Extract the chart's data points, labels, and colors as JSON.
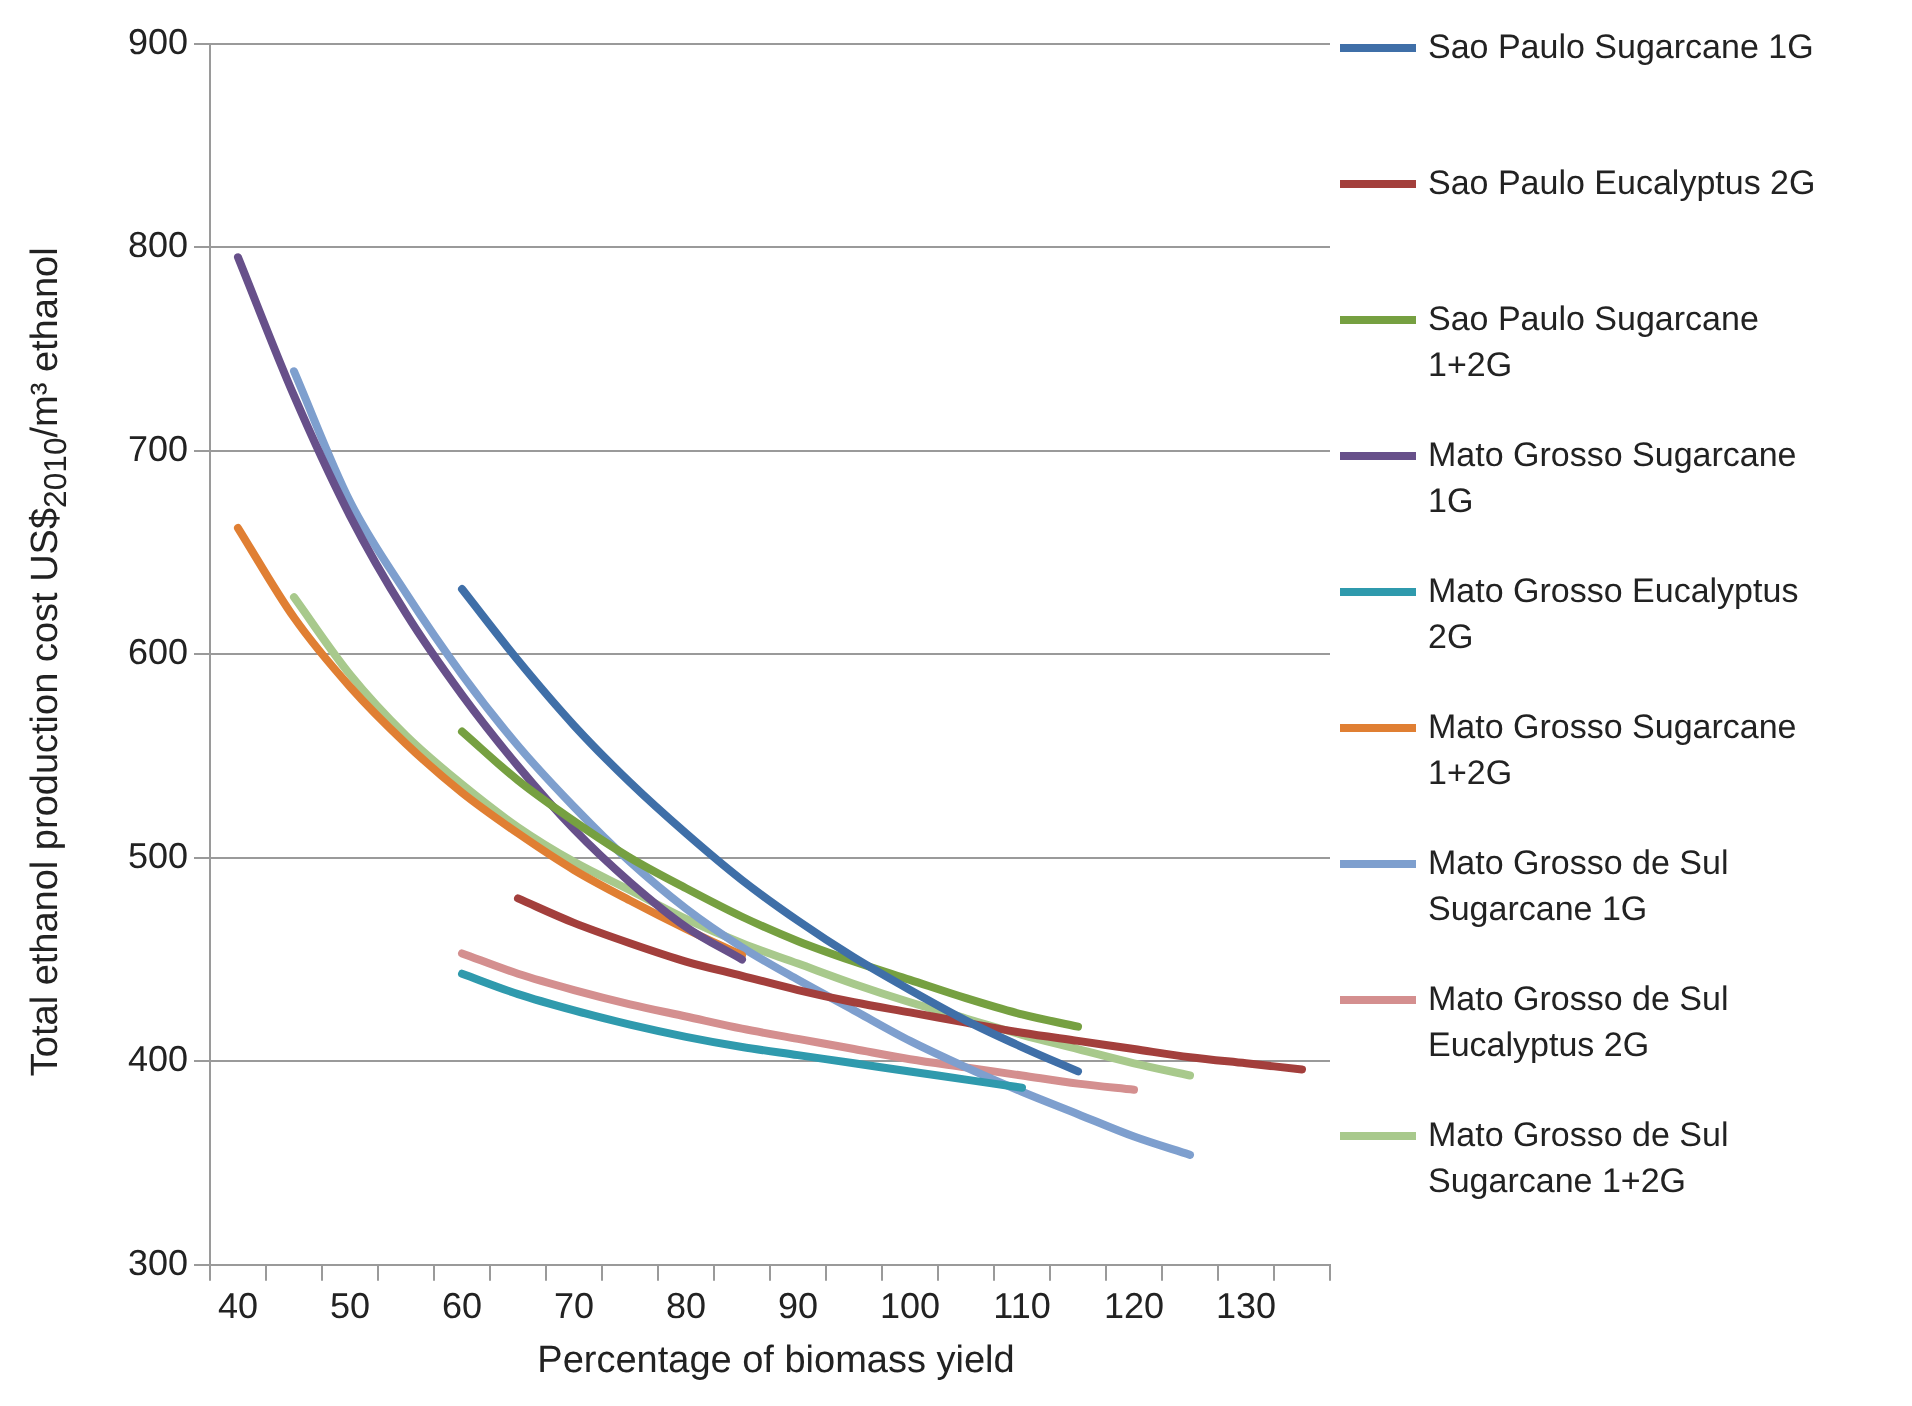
{
  "chart_data": {
    "type": "line",
    "xlabel": "Percentage of biomass yield",
    "ylabel": "Total ethanol production cost US$$_{2010}$/m³ ethanol",
    "categories": [
      "40",
      null,
      "50",
      null,
      "60",
      null,
      "70",
      null,
      "80",
      null,
      "90",
      null,
      "100",
      null,
      "110",
      null,
      "120",
      null,
      "130",
      null
    ],
    "ylim": [
      300,
      900
    ],
    "yticks": [
      300,
      400,
      500,
      600,
      700,
      800,
      900
    ],
    "grid": "y",
    "legend": "right",
    "marker": "none",
    "line_style": "solid",
    "series": [
      {
        "name": "Sao Paulo Sugarcane 1G",
        "color": "#3f6fa8",
        "values": [
          null,
          null,
          null,
          null,
          632,
          597,
          565,
          537,
          512,
          489,
          469,
          451,
          435,
          420,
          407,
          395,
          null,
          null,
          null,
          null
        ]
      },
      {
        "name": "Sao Paulo Eucalyptus 2G",
        "color": "#a33f3c",
        "values": [
          null,
          null,
          null,
          null,
          null,
          480,
          468,
          458,
          449,
          442,
          435,
          429,
          424,
          419,
          414,
          410,
          406,
          402,
          399,
          396
        ]
      },
      {
        "name": "Sao Paulo Sugarcane 1+2G",
        "color": "#76a041",
        "values": [
          null,
          null,
          null,
          null,
          562,
          538,
          518,
          500,
          485,
          471,
          459,
          449,
          440,
          431,
          423,
          417,
          null,
          null,
          null,
          null
        ]
      },
      {
        "name": "Mato Grosso Sugarcane 1G",
        "color": "#67508a",
        "values": [
          795,
          727,
          668,
          620,
          580,
          545,
          514,
          488,
          466,
          450,
          null,
          null,
          null,
          null,
          null,
          null,
          null,
          null,
          null,
          null
        ]
      },
      {
        "name": "Mato Grosso Eucalyptus 2G",
        "color": "#2f9aad",
        "values": [
          null,
          null,
          null,
          null,
          443,
          433,
          425,
          418,
          412,
          407,
          403,
          399,
          395,
          391,
          387,
          null,
          null,
          null,
          null,
          null
        ]
      },
      {
        "name": "Mato Grosso Sugarcane 1+2G",
        "color": "#e07f33",
        "values": [
          662,
          618,
          584,
          556,
          532,
          512,
          494,
          479,
          465,
          452,
          null,
          null,
          null,
          null,
          null,
          null,
          null,
          null,
          null,
          null
        ]
      },
      {
        "name": "Mato Grosso de Sul Sugarcane 1G",
        "color": "#7e9fce",
        "values": [
          null,
          739,
          675,
          630,
          590,
          555,
          525,
          498,
          475,
          456,
          440,
          425,
          410,
          397,
          385,
          374,
          363,
          354,
          null,
          null
        ]
      },
      {
        "name": "Mato Grosso de Sul Eucalyptus 2G",
        "color": "#d48f8f",
        "values": [
          null,
          null,
          null,
          null,
          453,
          443,
          435,
          428,
          422,
          416,
          411,
          406,
          401,
          397,
          393,
          389,
          386,
          null,
          null,
          null
        ]
      },
      {
        "name": "Mato Grosso de Sul Sugarcane 1+2G",
        "color": "#a8c98c",
        "values": [
          null,
          628,
          590,
          560,
          536,
          515,
          498,
          484,
          470,
          458,
          448,
          438,
          429,
          421,
          413,
          406,
          399,
          393,
          null,
          null
        ]
      }
    ]
  }
}
